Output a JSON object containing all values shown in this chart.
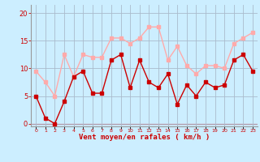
{
  "x": [
    0,
    1,
    2,
    3,
    4,
    5,
    6,
    7,
    8,
    9,
    10,
    11,
    12,
    13,
    14,
    15,
    16,
    17,
    18,
    19,
    20,
    21,
    22,
    23
  ],
  "wind_mean": [
    5,
    1,
    0,
    4,
    8.5,
    9.5,
    5.5,
    5.5,
    11.5,
    12.5,
    6.5,
    11.5,
    7.5,
    6.5,
    9,
    3.5,
    7,
    5,
    7.5,
    6.5,
    7,
    11.5,
    12.5,
    9.5
  ],
  "wind_gust": [
    9.5,
    7.5,
    5,
    12.5,
    8.5,
    12.5,
    12,
    12,
    15.5,
    15.5,
    14.5,
    15.5,
    17.5,
    17.5,
    11.5,
    14,
    10.5,
    9,
    10.5,
    10.5,
    10,
    14.5,
    15.5,
    16.5
  ],
  "mean_color": "#cc0000",
  "gust_color": "#ffaaaa",
  "bg_color": "#cceeff",
  "grid_color": "#aabbcc",
  "xlabel": "Vent moyen/en rafales ( km/h )",
  "xlabel_color": "#cc0000",
  "ylabel_ticks": [
    0,
    5,
    10,
    15,
    20
  ],
  "ylim": [
    -0.5,
    21.5
  ],
  "xlim": [
    -0.5,
    23.5
  ]
}
